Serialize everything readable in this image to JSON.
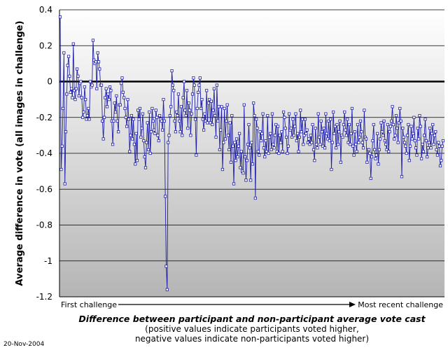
{
  "chart_data": {
    "type": "line",
    "title": "Difference between participant and non-participant average vote cast",
    "subtitle_lines": [
      "(positive values indicate participants voted higher,",
      "negative values indicate non-participants voted higher)"
    ],
    "ylabel": "Average difference in vote (all images in challenge)",
    "x_start_label": "First challenge",
    "x_end_label": "Most recent challenge",
    "ylim": [
      -1.2,
      0.4
    ],
    "y_ticks": [
      0.4,
      0.2,
      0,
      -0.2,
      -0.4,
      -0.6,
      -0.8,
      -1,
      -1.2
    ],
    "y_tick_labels": [
      "0.4",
      "0.2",
      "0",
      "-0.2",
      "-0.4",
      "-0.6",
      "-0.8",
      "-1",
      "-1.2"
    ],
    "grid": true,
    "series_color": "#1f1fa8",
    "marker": "hollow-square",
    "values": [
      0.36,
      -0.49,
      -0.36,
      -0.15,
      0.16,
      -0.57,
      -0.28,
      -0.07,
      0.09,
      0.14,
      0.03,
      -0.06,
      -0.04,
      -0.09,
      0.21,
      -0.05,
      -0.1,
      -0.04,
      0.07,
      0.03,
      -0.08,
      -0.01,
      0.0,
      -0.09,
      -0.2,
      -0.17,
      -0.03,
      -0.1,
      -0.21,
      -0.19,
      -0.15,
      -0.21,
      0.0,
      -0.03,
      -0.02,
      0.23,
      0.12,
      0.1,
      0.11,
      -0.04,
      0.16,
      0.11,
      0.07,
      -0.02,
      -0.02,
      -0.22,
      -0.32,
      -0.2,
      -0.09,
      -0.04,
      -0.14,
      -0.07,
      -0.1,
      -0.03,
      -0.05,
      -0.22,
      -0.35,
      -0.22,
      -0.12,
      -0.17,
      -0.08,
      -0.22,
      -0.28,
      -0.13,
      -0.13,
      -0.01,
      0.02,
      -0.06,
      -0.09,
      -0.15,
      -0.2,
      -0.25,
      -0.1,
      -0.21,
      -0.39,
      -0.3,
      -0.19,
      -0.32,
      -0.21,
      -0.35,
      -0.46,
      -0.29,
      -0.44,
      -0.16,
      -0.21,
      -0.15,
      -0.31,
      -0.26,
      -0.18,
      -0.33,
      -0.42,
      -0.48,
      -0.34,
      -0.23,
      -0.38,
      -0.17,
      -0.4,
      -0.28,
      -0.15,
      -0.22,
      -0.27,
      -0.29,
      -0.16,
      -0.2,
      -0.3,
      -0.33,
      -0.19,
      -0.21,
      -0.22,
      -0.27,
      -0.1,
      -0.22,
      -0.64,
      -1.03,
      -1.16,
      -0.34,
      -0.3,
      -0.19,
      -0.14,
      0.06,
      -0.02,
      -0.05,
      -0.22,
      -0.28,
      -0.17,
      -0.19,
      -0.07,
      -0.22,
      -0.28,
      -0.14,
      -0.3,
      -0.09,
      0.0,
      -0.16,
      -0.19,
      -0.05,
      -0.26,
      -0.12,
      -0.16,
      -0.3,
      -0.18,
      -0.07,
      0.02,
      -0.02,
      -0.21,
      -0.41,
      -0.15,
      -0.06,
      -0.02,
      0.02,
      -0.15,
      -0.1,
      -0.21,
      -0.27,
      -0.18,
      -0.22,
      -0.05,
      -0.23,
      -0.12,
      -0.1,
      -0.23,
      -0.11,
      -0.24,
      -0.16,
      -0.04,
      -0.19,
      -0.31,
      -0.02,
      -0.22,
      -0.14,
      -0.38,
      -0.27,
      -0.14,
      -0.49,
      -0.34,
      -0.15,
      -0.32,
      -0.22,
      -0.13,
      -0.3,
      -0.38,
      -0.23,
      -0.45,
      -0.19,
      -0.36,
      -0.57,
      -0.34,
      -0.44,
      -0.32,
      -0.42,
      -0.36,
      -0.29,
      -0.48,
      -0.39,
      -0.5,
      -0.51,
      -0.13,
      -0.42,
      -0.55,
      -0.44,
      -0.35,
      -0.24,
      -0.37,
      -0.55,
      -0.34,
      -0.46,
      -0.12,
      -0.19,
      -0.65,
      -0.21,
      -0.26,
      -0.39,
      -0.41,
      -0.28,
      -0.33,
      -0.29,
      -0.18,
      -0.37,
      -0.42,
      -0.33,
      -0.39,
      -0.19,
      -0.4,
      -0.31,
      -0.29,
      -0.38,
      -0.18,
      -0.35,
      -0.37,
      -0.3,
      -0.24,
      -0.39,
      -0.25,
      -0.4,
      -0.3,
      -0.34,
      -0.28,
      -0.39,
      -0.17,
      -0.2,
      -0.26,
      -0.31,
      -0.4,
      -0.36,
      -0.18,
      -0.27,
      -0.26,
      -0.31,
      -0.21,
      -0.3,
      -0.25,
      -0.18,
      -0.33,
      -0.29,
      -0.39,
      -0.31,
      -0.16,
      -0.28,
      -0.21,
      -0.35,
      -0.3,
      -0.21,
      -0.29,
      -0.27,
      -0.34,
      -0.32,
      -0.35,
      -0.3,
      -0.34,
      -0.24,
      -0.38,
      -0.44,
      -0.26,
      -0.35,
      -0.37,
      -0.18,
      -0.31,
      -0.35,
      -0.22,
      -0.28,
      -0.36,
      -0.26,
      -0.37,
      -0.18,
      -0.29,
      -0.32,
      -0.22,
      -0.33,
      -0.21,
      -0.49,
      -0.34,
      -0.17,
      -0.29,
      -0.25,
      -0.37,
      -0.24,
      -0.35,
      -0.28,
      -0.22,
      -0.45,
      -0.3,
      -0.31,
      -0.24,
      -0.17,
      -0.27,
      -0.3,
      -0.21,
      -0.34,
      -0.24,
      -0.35,
      -0.29,
      -0.15,
      -0.36,
      -0.41,
      -0.28,
      -0.35,
      -0.39,
      -0.24,
      -0.34,
      -0.31,
      -0.22,
      -0.28,
      -0.34,
      -0.37,
      -0.16,
      -0.31,
      -0.32,
      -0.45,
      -0.38,
      -0.38,
      -0.4,
      -0.54,
      -0.42,
      -0.33,
      -0.24,
      -0.38,
      -0.43,
      -0.41,
      -0.29,
      -0.46,
      -0.38,
      -0.32,
      -0.23,
      -0.28,
      -0.3,
      -0.22,
      -0.33,
      -0.35,
      -0.38,
      -0.24,
      -0.39,
      -0.28,
      -0.25,
      -0.22,
      -0.14,
      -0.24,
      -0.32,
      -0.3,
      -0.19,
      -0.26,
      -0.34,
      -0.23,
      -0.15,
      -0.22,
      -0.53,
      -0.26,
      -0.31,
      -0.34,
      -0.36,
      -0.4,
      -0.3,
      -0.24,
      -0.44,
      -0.36,
      -0.25,
      -0.32,
      -0.29,
      -0.2,
      -0.33,
      -0.37,
      -0.41,
      -0.26,
      -0.32,
      -0.19,
      -0.25,
      -0.43,
      -0.35,
      -0.39,
      -0.3,
      -0.21,
      -0.33,
      -0.42,
      -0.37,
      -0.34,
      -0.26,
      -0.37,
      -0.29,
      -0.24,
      -0.35,
      -0.3,
      -0.28,
      -0.38,
      -0.41,
      -0.34,
      -0.36,
      -0.47,
      -0.44,
      -0.36,
      -0.33
    ]
  },
  "date_stamp": "20-Nov-2004"
}
